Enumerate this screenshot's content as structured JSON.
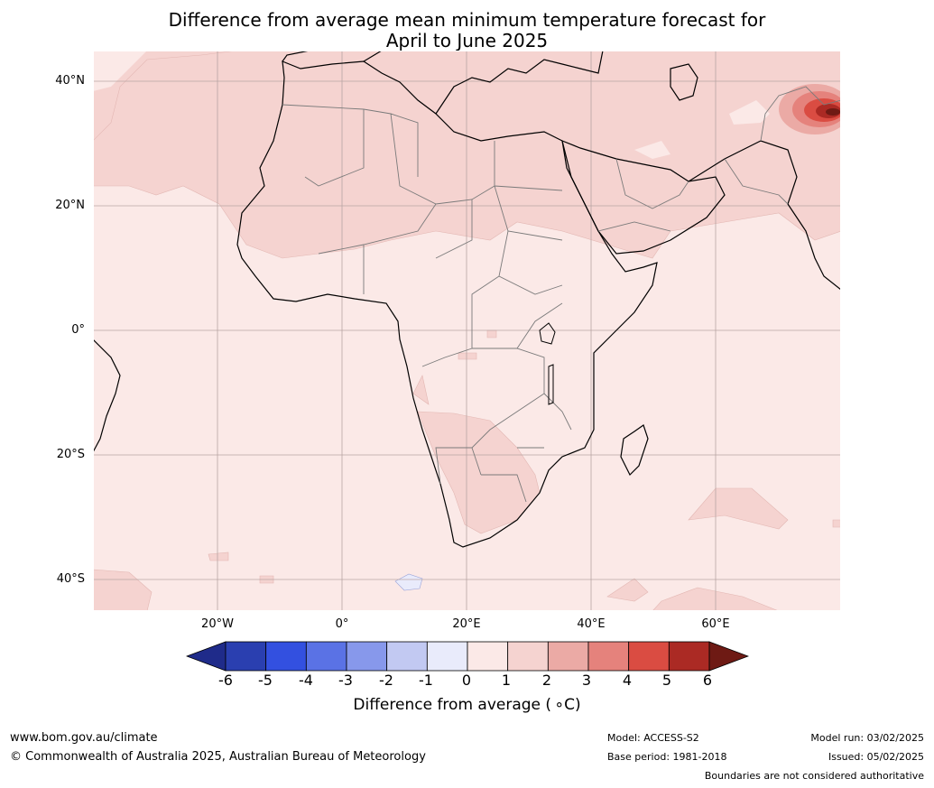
{
  "title_line1": "Difference from average mean minimum temperature forecast for",
  "title_line2": "April to June 2025",
  "lat_labels": [
    "40°N",
    "20°N",
    "0°",
    "20°S",
    "40°S"
  ],
  "lon_labels": [
    "20°W",
    "0°",
    "20°E",
    "40°E",
    "60°E"
  ],
  "colorbar": {
    "ticks": [
      "-6",
      "-5",
      "-4",
      "-3",
      "-2",
      "-1",
      "0",
      "1",
      "2",
      "3",
      "4",
      "5",
      "6"
    ],
    "label": "Difference from average ( ∘C)",
    "colors": [
      "#1f2b8a",
      "#2a3fb0",
      "#3350e0",
      "#5a72e5",
      "#8798eb",
      "#c2c9f2",
      "#e9ebfb",
      "#fbe9e7",
      "#f5d3d0",
      "#ebaaa5",
      "#e5827c",
      "#da4c42",
      "#ab2a24",
      "#6e1a14"
    ]
  },
  "chart_data": {
    "type": "heatmap",
    "title": "Difference from average mean minimum temperature forecast for April to June 2025",
    "region": "Africa and surrounds",
    "extent_lon": [
      -40,
      80
    ],
    "extent_lat": [
      -45,
      45
    ],
    "units": "°C",
    "colorbar_label": "Difference from average (°C)",
    "levels": [
      -6,
      -5,
      -4,
      -3,
      -2,
      -1,
      0,
      1,
      2,
      3,
      4,
      5,
      6
    ],
    "dominant_category": "0 to 1",
    "notable_features": [
      "1 to 2 over Sahara, Arabian Peninsula, Mediterranean, western Atlantic",
      "1 to 2 over southern Africa (Namibia, South Africa)",
      "up to 5 to 6 over the Himalaya / Tibetan plateau near 35N 80E",
      "-1 to 0 small patch south of Africa near 42S 12E"
    ]
  },
  "footer": {
    "website": "www.bom.gov.au/climate",
    "copyright": "© Commonwealth of Australia 2025, Australian Bureau of Meteorology",
    "model": "Model: ACCESS-S2",
    "base_period": "Base period: 1981-2018",
    "model_run": "Model run: 03/02/2025",
    "issued": "Issued: 05/02/2025",
    "disclaimer": "Boundaries are not considered authoritative"
  }
}
